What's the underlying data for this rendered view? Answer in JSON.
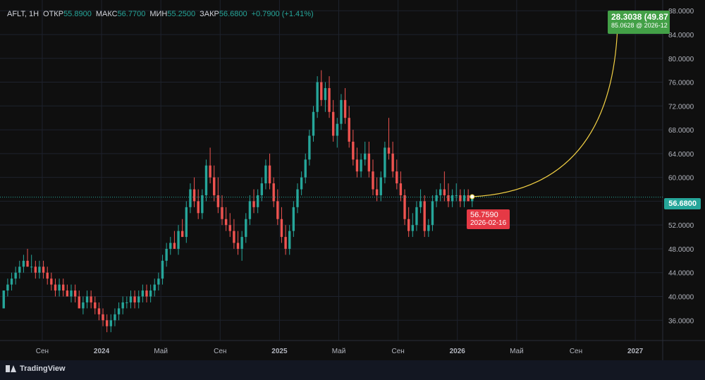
{
  "legend": {
    "symbol": "AFLT, 1H",
    "open_label": "ОТКР",
    "open": "55.8900",
    "high_label": "МАКС",
    "high": "56.7700",
    "low_label": "МИН",
    "low": "55.2500",
    "close_label": "ЗАКР",
    "close": "56.6800",
    "change": "+0.7900 (+1.41%)"
  },
  "current_price_tag": "56.6800",
  "marker_start": {
    "price": "56.7590",
    "date": "2026-02-16"
  },
  "marker_end": {
    "change": "28.3038 (49.87",
    "price_date": "85.0628 @ 2026-12"
  },
  "logo": {
    "text": "TradingView"
  },
  "colors": {
    "up": "#26a69a",
    "down": "#ef5350",
    "curve": "#f2d044",
    "grid": "#1e222d"
  },
  "chart_data": {
    "type": "candlestick",
    "y_ticks": [
      "36.0000",
      "40.0000",
      "44.0000",
      "48.0000",
      "52.0000",
      "56.0000",
      "60.0000",
      "64.0000",
      "68.0000",
      "72.0000",
      "76.0000",
      "80.0000",
      "84.0000",
      "88.0000"
    ],
    "y_tick_values": [
      36,
      40,
      44,
      48,
      52,
      56,
      60,
      64,
      68,
      72,
      76,
      80,
      84,
      88
    ],
    "ylim": [
      32.6,
      89.8
    ],
    "x_ticks": [
      {
        "label": "Сен",
        "bold": false,
        "t": 0.0
      },
      {
        "label": "2024",
        "bold": true,
        "t": 4.0
      },
      {
        "label": "Май",
        "bold": false,
        "t": 8.0
      },
      {
        "label": "Сен",
        "bold": false,
        "t": 12.0
      },
      {
        "label": "2025",
        "bold": true,
        "t": 16.0
      },
      {
        "label": "Май",
        "bold": false,
        "t": 20.0
      },
      {
        "label": "Сен",
        "bold": false,
        "t": 24.0
      },
      {
        "label": "2026",
        "bold": true,
        "t": 28.0
      },
      {
        "label": "Май",
        "bold": false,
        "t": 32.0
      },
      {
        "label": "Сен",
        "bold": false,
        "t": 36.0
      },
      {
        "label": "2027",
        "bold": true,
        "t": 40.0
      }
    ],
    "xlim": [
      -2.85,
      41.85
    ],
    "candles": [
      [
        38,
        41,
        38,
        41
      ],
      [
        41,
        43,
        40,
        42
      ],
      [
        42,
        44,
        41,
        43
      ],
      [
        43,
        45,
        42,
        44
      ],
      [
        44,
        46,
        43,
        45
      ],
      [
        45,
        47,
        44,
        46
      ],
      [
        46,
        48,
        45,
        45
      ],
      [
        45,
        47,
        44,
        45
      ],
      [
        45,
        46,
        43,
        44
      ],
      [
        44,
        46,
        43,
        45
      ],
      [
        45,
        46,
        43,
        44
      ],
      [
        44,
        45,
        42,
        43
      ],
      [
        43,
        44,
        41,
        42
      ],
      [
        42,
        43,
        40,
        41
      ],
      [
        41,
        43,
        40,
        42
      ],
      [
        42,
        43,
        40,
        41
      ],
      [
        41,
        42,
        40,
        40
      ],
      [
        40,
        42,
        39,
        41
      ],
      [
        41,
        42,
        39,
        40
      ],
      [
        40,
        41,
        38,
        38
      ],
      [
        38,
        40,
        37,
        39
      ],
      [
        39,
        41,
        38,
        40
      ],
      [
        40,
        41,
        38,
        39
      ],
      [
        39,
        40,
        37,
        38
      ],
      [
        38,
        39,
        36,
        37
      ],
      [
        37,
        38,
        35,
        36
      ],
      [
        36,
        37,
        34,
        35
      ],
      [
        35,
        37,
        34,
        36
      ],
      [
        36,
        38,
        35,
        37
      ],
      [
        37,
        39,
        36,
        38
      ],
      [
        38,
        40,
        37,
        39
      ],
      [
        39,
        40,
        38,
        39
      ],
      [
        39,
        41,
        38,
        40
      ],
      [
        40,
        41,
        38,
        39
      ],
      [
        39,
        41,
        38,
        40
      ],
      [
        40,
        42,
        39,
        41
      ],
      [
        41,
        42,
        39,
        40
      ],
      [
        40,
        42,
        39,
        41
      ],
      [
        41,
        43,
        40,
        42
      ],
      [
        42,
        44,
        41,
        43
      ],
      [
        43,
        47,
        42,
        46
      ],
      [
        46,
        49,
        45,
        48
      ],
      [
        48,
        50,
        47,
        49
      ],
      [
        49,
        51,
        48,
        48
      ],
      [
        48,
        52,
        47,
        51
      ],
      [
        51,
        53,
        50,
        50
      ],
      [
        50,
        56,
        49,
        55
      ],
      [
        55,
        59,
        54,
        58
      ],
      [
        58,
        60,
        55,
        56
      ],
      [
        56,
        58,
        53,
        54
      ],
      [
        54,
        58,
        53,
        57
      ],
      [
        57,
        63,
        56,
        62
      ],
      [
        62,
        65,
        59,
        60
      ],
      [
        60,
        62,
        56,
        57
      ],
      [
        57,
        60,
        54,
        55
      ],
      [
        55,
        57,
        52,
        53
      ],
      [
        53,
        55,
        51,
        52
      ],
      [
        52,
        54,
        50,
        51
      ],
      [
        51,
        53,
        48,
        49
      ],
      [
        49,
        51,
        47,
        48
      ],
      [
        48,
        51,
        46,
        50
      ],
      [
        50,
        54,
        49,
        53
      ],
      [
        53,
        57,
        52,
        56
      ],
      [
        56,
        58,
        54,
        55
      ],
      [
        55,
        58,
        54,
        57
      ],
      [
        57,
        60,
        56,
        59
      ],
      [
        59,
        63,
        58,
        62
      ],
      [
        62,
        64,
        58,
        59
      ],
      [
        59,
        60,
        55,
        56
      ],
      [
        56,
        58,
        52,
        53
      ],
      [
        53,
        55,
        49,
        50
      ],
      [
        50,
        52,
        47,
        48
      ],
      [
        48,
        52,
        47,
        51
      ],
      [
        51,
        56,
        50,
        55
      ],
      [
        55,
        59,
        54,
        58
      ],
      [
        58,
        61,
        57,
        60
      ],
      [
        60,
        64,
        59,
        63
      ],
      [
        63,
        68,
        62,
        67
      ],
      [
        67,
        72,
        66,
        71
      ],
      [
        71,
        77,
        70,
        76
      ],
      [
        76,
        78,
        72,
        73
      ],
      [
        73,
        76,
        71,
        75
      ],
      [
        75,
        77,
        70,
        71
      ],
      [
        71,
        73,
        66,
        67
      ],
      [
        67,
        70,
        65,
        69
      ],
      [
        69,
        74,
        68,
        73
      ],
      [
        73,
        75,
        69,
        70
      ],
      [
        70,
        72,
        65,
        66
      ],
      [
        66,
        68,
        62,
        63
      ],
      [
        63,
        65,
        60,
        61
      ],
      [
        61,
        64,
        60,
        63
      ],
      [
        63,
        66,
        62,
        64
      ],
      [
        64,
        66,
        60,
        61
      ],
      [
        61,
        63,
        57,
        58
      ],
      [
        58,
        60,
        56,
        57
      ],
      [
        57,
        61,
        56,
        60
      ],
      [
        60,
        66,
        59,
        65
      ],
      [
        65,
        70,
        63,
        64
      ],
      [
        64,
        66,
        60,
        61
      ],
      [
        61,
        63,
        58,
        59
      ],
      [
        59,
        61,
        56,
        57
      ],
      [
        57,
        58,
        52,
        53
      ],
      [
        53,
        55,
        50,
        51
      ],
      [
        51,
        54,
        50,
        52
      ],
      [
        52,
        56,
        51,
        55
      ],
      [
        55,
        58,
        54,
        56
      ],
      [
        56,
        57,
        50,
        51
      ],
      [
        51,
        53,
        50,
        52
      ],
      [
        52,
        57,
        51,
        56
      ],
      [
        56,
        58,
        55,
        57
      ],
      [
        57,
        59,
        56,
        58
      ],
      [
        58,
        61,
        56,
        57
      ],
      [
        57,
        59,
        55,
        56
      ],
      [
        56,
        58,
        55,
        57
      ],
      [
        57,
        59,
        56,
        57
      ],
      [
        57,
        58,
        55,
        56
      ],
      [
        56,
        58,
        55,
        57
      ],
      [
        57,
        58,
        56,
        56
      ],
      [
        56,
        57,
        55,
        57
      ]
    ],
    "projection": {
      "start": {
        "t": 29.0,
        "price": 56.759
      },
      "end": {
        "t": 38.8,
        "price": 85.0628
      }
    },
    "current_price": 56.68
  }
}
